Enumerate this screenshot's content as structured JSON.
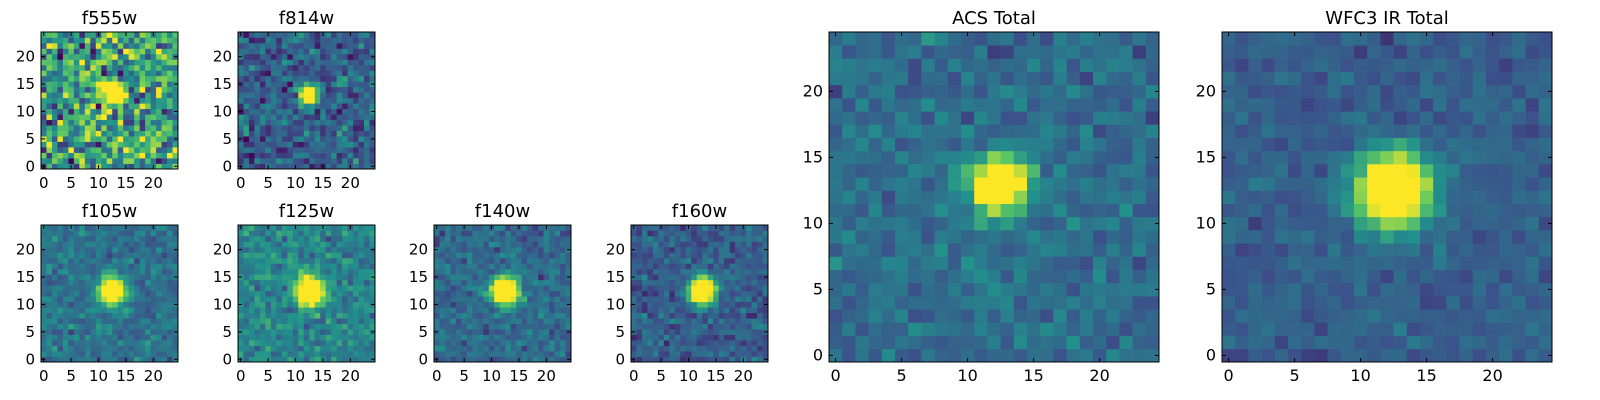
{
  "figure": {
    "description_type": "image mosaic"
  },
  "chart_data": [
    {
      "type": "heatmap",
      "title": "f555w",
      "xticks": [
        "0",
        "5",
        "10",
        "15",
        "20"
      ],
      "yticks": [
        "0",
        "5",
        "10",
        "15",
        "20"
      ],
      "xlim": [
        0,
        24
      ],
      "ylim": [
        0,
        24
      ],
      "grid_size": 25,
      "source_center": [
        12.5,
        13.5
      ],
      "source_sigma": 1.3,
      "noise": 0.45,
      "background": 0.55,
      "seed": 11
    },
    {
      "type": "heatmap",
      "title": "f814w",
      "xticks": [
        "0",
        "5",
        "10",
        "15",
        "20"
      ],
      "yticks": [
        "0",
        "5",
        "10",
        "15",
        "20"
      ],
      "xlim": [
        0,
        24
      ],
      "ylim": [
        0,
        24
      ],
      "grid_size": 25,
      "source_center": [
        12.5,
        13.0
      ],
      "source_sigma": 1.2,
      "noise": 0.22,
      "background": 0.3,
      "seed": 23
    },
    {
      "type": "heatmap",
      "title": "f105w",
      "xticks": [
        "0",
        "5",
        "10",
        "15",
        "20"
      ],
      "yticks": [
        "0",
        "5",
        "10",
        "15",
        "20"
      ],
      "xlim": [
        0,
        24
      ],
      "ylim": [
        0,
        24
      ],
      "grid_size": 25,
      "source_center": [
        12.5,
        12.5
      ],
      "source_sigma": 1.6,
      "noise": 0.14,
      "background": 0.38,
      "seed": 37
    },
    {
      "type": "heatmap",
      "title": "f125w",
      "xticks": [
        "0",
        "5",
        "10",
        "15",
        "20"
      ],
      "yticks": [
        "0",
        "5",
        "10",
        "15",
        "20"
      ],
      "xlim": [
        0,
        24
      ],
      "ylim": [
        0,
        24
      ],
      "grid_size": 25,
      "source_center": [
        12.5,
        12.5
      ],
      "source_sigma": 1.7,
      "noise": 0.16,
      "background": 0.45,
      "seed": 41
    },
    {
      "type": "heatmap",
      "title": "f140w",
      "xticks": [
        "0",
        "5",
        "10",
        "15",
        "20"
      ],
      "yticks": [
        "0",
        "5",
        "10",
        "15",
        "20"
      ],
      "xlim": [
        0,
        24
      ],
      "ylim": [
        0,
        24
      ],
      "grid_size": 25,
      "source_center": [
        12.5,
        12.5
      ],
      "source_sigma": 1.7,
      "noise": 0.14,
      "background": 0.35,
      "seed": 53
    },
    {
      "type": "heatmap",
      "title": "f160w",
      "xticks": [
        "0",
        "5",
        "10",
        "15",
        "20"
      ],
      "yticks": [
        "0",
        "5",
        "10",
        "15",
        "20"
      ],
      "xlim": [
        0,
        24
      ],
      "ylim": [
        0,
        24
      ],
      "grid_size": 25,
      "source_center": [
        12.5,
        12.5
      ],
      "source_sigma": 1.7,
      "noise": 0.15,
      "background": 0.3,
      "seed": 67
    },
    {
      "type": "heatmap",
      "title": "ACS Total",
      "xticks": [
        "0",
        "5",
        "10",
        "15",
        "20"
      ],
      "yticks": [
        "0",
        "5",
        "10",
        "15",
        "20"
      ],
      "xlim": [
        0,
        24
      ],
      "ylim": [
        0,
        24
      ],
      "grid_size": 25,
      "source_center": [
        12.5,
        13.0
      ],
      "source_sigma": 1.4,
      "noise": 0.13,
      "background": 0.36,
      "seed": 79
    },
    {
      "type": "heatmap",
      "title": "WFC3 IR Total",
      "xticks": [
        "0",
        "5",
        "10",
        "15",
        "20"
      ],
      "yticks": [
        "0",
        "5",
        "10",
        "15",
        "20"
      ],
      "xlim": [
        0,
        24
      ],
      "ylim": [
        0,
        24
      ],
      "grid_size": 25,
      "source_center": [
        12.5,
        12.5
      ],
      "source_sigma": 1.9,
      "noise": 0.09,
      "background": 0.3,
      "seed": 97
    }
  ],
  "colormap": [
    "#440154",
    "#3b528b",
    "#21918c",
    "#5ec962",
    "#fde725"
  ]
}
